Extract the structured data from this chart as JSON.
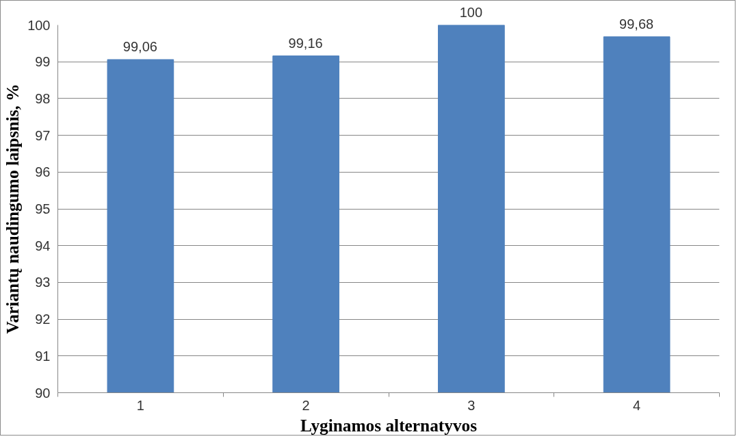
{
  "chart_data": {
    "type": "bar",
    "xlabel": "Lyginamos alternatyvos",
    "ylabel": "Variantų naudingumo laipsnis, %",
    "categories": [
      "1",
      "2",
      "3",
      "4"
    ],
    "values": [
      99.06,
      99.16,
      100,
      99.68
    ],
    "value_labels": [
      "99,06",
      "99,16",
      "100",
      "99,68"
    ],
    "color": "#4f81bd",
    "ylim": [
      90,
      100
    ],
    "yticks": [
      90,
      91,
      92,
      93,
      94,
      95,
      96,
      97,
      98,
      99,
      100
    ],
    "grid": "y"
  }
}
